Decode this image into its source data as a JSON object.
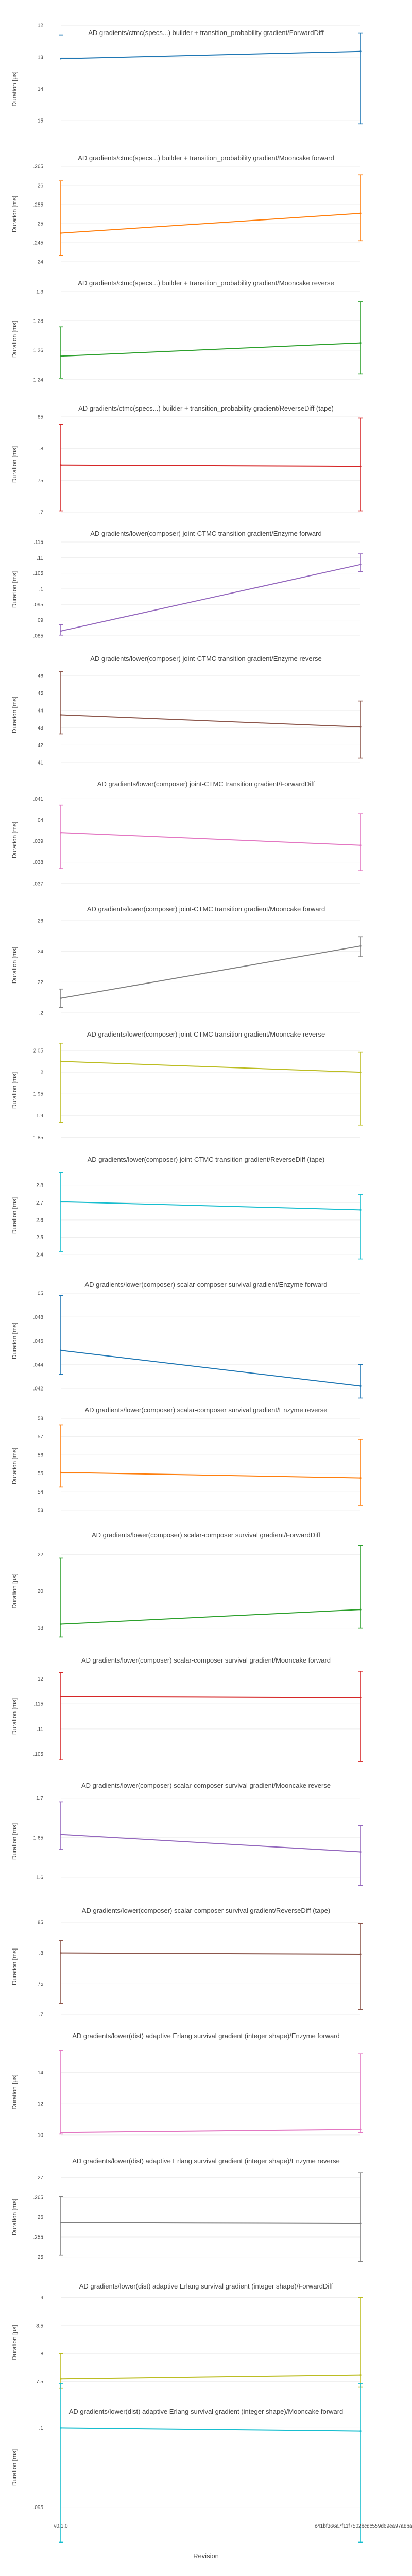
{
  "figure": {
    "xlabel": "Revision"
  },
  "chart_data": [
    {
      "type": "line",
      "title": "AD gradients/ctmc(specs...) builder + transition_probability gradient/ForwardDiff",
      "ylabel": "Duration [μs]",
      "ylim": [
        15.5,
        12.5
      ],
      "yticks": [
        12,
        13,
        14,
        15
      ],
      "x": [
        "v0.1.0",
        "c41bf366a7f11f7502bcdc559d69ea97a8bafb"
      ],
      "series": [
        {
          "name": "",
          "color": "#1f77b4",
          "values": [
            13.05,
            12.82
          ],
          "err_low": [
            12.3,
            15.1
          ],
          "err_high": [
            12.3,
            12.25
          ]
        }
      ]
    },
    {
      "type": "line",
      "title": "AD gradients/ctmc(specs...) builder + transition_probability gradient/Mooncake forward",
      "ylabel": "Duration [ms]",
      "ylim": [
        0.24,
        0.265
      ],
      "yticks": [
        0.24,
        0.245,
        0.25,
        0.255,
        0.26,
        0.265
      ],
      "x": [
        "v0.1.0",
        "c41bf366a7f11f7502bcdc559d69ea97a8bafb"
      ],
      "series": [
        {
          "name": "",
          "color": "#ff7f0e",
          "values": [
            0.2475,
            0.2527
          ],
          "err_low": [
            0.2417,
            0.2455
          ],
          "err_high": [
            0.2612,
            0.2628
          ]
        }
      ]
    },
    {
      "type": "line",
      "title": "AD gradients/ctmc(specs...) builder + transition_probability gradient/Mooncake reverse",
      "ylabel": "Duration [ms]",
      "ylim": [
        1.235,
        1.3
      ],
      "yticks": [
        1.24,
        1.26,
        1.28,
        1.3
      ],
      "x": [
        "v0.1.0",
        "c41bf366a7f11f7502bcdc559d69ea97a8bafb"
      ],
      "series": [
        {
          "name": "",
          "color": "#2ca02c",
          "values": [
            1.256,
            1.265
          ],
          "err_low": [
            1.241,
            1.244
          ],
          "err_high": [
            1.276,
            1.293
          ]
        }
      ]
    },
    {
      "type": "line",
      "title": "AD gradients/ctmc(specs...) builder + transition_probability gradient/ReverseDiff (tape)",
      "ylabel": "Duration [ms]",
      "ylim": [
        0.7,
        0.85
      ],
      "yticks": [
        0.7,
        0.75,
        0.8,
        0.85
      ],
      "x": [
        "v0.1.0",
        "c41bf366a7f11f7502bcdc559d69ea97a8bafb"
      ],
      "series": [
        {
          "name": "",
          "color": "#d62728",
          "values": [
            0.774,
            0.772
          ],
          "err_low": [
            0.702,
            0.702
          ],
          "err_high": [
            0.838,
            0.848
          ]
        }
      ]
    },
    {
      "type": "line",
      "title": "AD gradients/lower(composer) joint-CTMC transition gradient/Enzyme forward",
      "ylabel": "Duration [ms]",
      "ylim": [
        0.0845,
        0.115
      ],
      "yticks": [
        0.085,
        0.09,
        0.095,
        0.1,
        0.105,
        0.11,
        0.115
      ],
      "x": [
        "v0.1.0",
        "c41bf366a7f11f7502bcdc559d69ea97a8bafb"
      ],
      "series": [
        {
          "name": "",
          "color": "#9467bd",
          "values": [
            0.0865,
            0.1078
          ],
          "err_low": [
            0.0852,
            0.1055
          ],
          "err_high": [
            0.0885,
            0.1112
          ]
        }
      ]
    },
    {
      "type": "line",
      "title": "AD gradients/lower(composer) joint-CTMC transition gradient/Enzyme reverse",
      "ylabel": "Duration [ms]",
      "ylim": [
        0.41,
        0.465
      ],
      "yticks": [
        0.41,
        0.42,
        0.43,
        0.44,
        0.45,
        0.46
      ],
      "x": [
        "v0.1.0",
        "c41bf366a7f11f7502bcdc559d69ea97a8bafb"
      ],
      "series": [
        {
          "name": "",
          "color": "#8c564b",
          "values": [
            0.4375,
            0.4305
          ],
          "err_low": [
            0.4265,
            0.4125
          ],
          "err_high": [
            0.4625,
            0.4455
          ]
        }
      ]
    },
    {
      "type": "line",
      "title": "AD gradients/lower(composer) joint-CTMC transition gradient/ForwardDiff",
      "ylabel": "Duration [ms]",
      "ylim": [
        0.0368,
        0.0413
      ],
      "yticks": [
        0.037,
        0.038,
        0.039,
        0.04,
        0.041
      ],
      "x": [
        "v0.1.0",
        "c41bf366a7f11f7502bcdc559d69ea97a8bafb"
      ],
      "series": [
        {
          "name": "",
          "color": "#e377c2",
          "values": [
            0.0394,
            0.0388
          ],
          "err_low": [
            0.0377,
            0.0376
          ],
          "err_high": [
            0.0407,
            0.0403
          ]
        }
      ]
    },
    {
      "type": "line",
      "title": "AD gradients/lower(composer) joint-CTMC transition gradient/Mooncake forward",
      "ylabel": "Duration [ms]",
      "ylim": [
        0.2,
        0.262
      ],
      "yticks": [
        0.2,
        0.22,
        0.24,
        0.26
      ],
      "x": [
        "v0.1.0",
        "c41bf366a7f11f7502bcdc559d69ea97a8bafb"
      ],
      "series": [
        {
          "name": "",
          "color": "#7f7f7f",
          "values": [
            0.2095,
            0.2435
          ],
          "err_low": [
            0.2035,
            0.2365
          ],
          "err_high": [
            0.2155,
            0.2495
          ]
        }
      ]
    },
    {
      "type": "line",
      "title": "AD gradients/lower(composer) joint-CTMC transition gradient/Mooncake reverse",
      "ylabel": "Duration [ms]",
      "ylim": [
        1.848,
        2.068
      ],
      "yticks": [
        1.85,
        1.9,
        1.95,
        2,
        2.05
      ],
      "x": [
        "v0.1.0",
        "c41bf366a7f11f7502bcdc559d69ea97a8bafb"
      ],
      "series": [
        {
          "name": "",
          "color": "#bcbd22",
          "values": [
            2.025,
            2.0
          ],
          "err_low": [
            1.884,
            1.878
          ],
          "err_high": [
            2.067,
            2.047
          ]
        }
      ]
    },
    {
      "type": "line",
      "title": "AD gradients/lower(composer) joint-CTMC transition gradient/ReverseDiff (tape)",
      "ylabel": "Duration [ms]",
      "ylim": [
        2.35,
        2.9
      ],
      "yticks": [
        2.4,
        2.5,
        2.6,
        2.7,
        2.8
      ],
      "x": [
        "v0.1.0",
        "c41bf366a7f11f7502bcdc559d69ea97a8bafb"
      ],
      "series": [
        {
          "name": "",
          "color": "#17becf",
          "values": [
            2.705,
            2.658
          ],
          "err_low": [
            2.418,
            2.375
          ],
          "err_high": [
            2.875,
            2.748
          ]
        }
      ]
    },
    {
      "type": "line",
      "title": "AD gradients/lower(composer) scalar-composer survival gradient/Enzyme forward",
      "ylabel": "Duration [ms]",
      "ylim": [
        0.042,
        0.05
      ],
      "yticks": [
        0.042,
        0.044,
        0.046,
        0.048,
        0.05
      ],
      "x": [
        "v0.1.0",
        "c41bf366a7f11f7502bcdc559d69ea97a8bafb"
      ],
      "series": [
        {
          "name": "",
          "color": "#1f77b4",
          "values": [
            0.0452,
            0.0422
          ],
          "err_low": [
            0.0432,
            0.0412
          ],
          "err_high": [
            0.0498,
            0.044
          ]
        }
      ]
    },
    {
      "type": "line",
      "title": "AD gradients/lower(composer) scalar-composer survival gradient/Enzyme reverse",
      "ylabel": "Duration [ms]",
      "ylim": [
        0.528,
        0.58
      ],
      "yticks": [
        0.53,
        0.54,
        0.55,
        0.56,
        0.57,
        0.58
      ],
      "x": [
        "v0.1.0",
        "c41bf366a7f11f7502bcdc559d69ea97a8bafb"
      ],
      "series": [
        {
          "name": "",
          "color": "#ff7f0e",
          "values": [
            0.5505,
            0.5475
          ],
          "err_low": [
            0.5425,
            0.5325
          ],
          "err_high": [
            0.5765,
            0.5685
          ]
        }
      ]
    },
    {
      "type": "line",
      "title": "AD gradients/lower(composer) scalar-composer survival gradient/ForwardDiff",
      "ylabel": "Duration [μs]",
      "ylim": [
        17.4,
        22.6
      ],
      "yticks": [
        18,
        20,
        22
      ],
      "x": [
        "v0.1.0",
        "c41bf366a7f11f7502bcdc559d69ea97a8bafb"
      ],
      "series": [
        {
          "name": "",
          "color": "#2ca02c",
          "values": [
            18.2,
            19.0
          ],
          "err_low": [
            17.5,
            18.0
          ],
          "err_high": [
            21.8,
            22.5
          ]
        }
      ]
    },
    {
      "type": "line",
      "title": "AD gradients/lower(composer) scalar-composer survival gradient/Mooncake forward",
      "ylabel": "Duration [ms]",
      "ylim": [
        0.103,
        0.122
      ],
      "yticks": [
        0.105,
        0.11,
        0.115,
        0.12
      ],
      "x": [
        "v0.1.0",
        "c41bf366a7f11f7502bcdc559d69ea97a8bafb"
      ],
      "series": [
        {
          "name": "",
          "color": "#d62728",
          "values": [
            0.1165,
            0.1163
          ],
          "err_low": [
            0.1038,
            0.1035
          ],
          "err_high": [
            0.1212,
            0.1215
          ]
        }
      ]
    },
    {
      "type": "line",
      "title": "AD gradients/lower(composer) scalar-composer survival gradient/Mooncake reverse",
      "ylabel": "Duration [ms]",
      "ylim": [
        1.585,
        1.705
      ],
      "yticks": [
        1.6,
        1.65,
        1.7
      ],
      "x": [
        "v0.1.0",
        "c41bf366a7f11f7502bcdc559d69ea97a8bafb"
      ],
      "series": [
        {
          "name": "",
          "color": "#9467bd",
          "values": [
            1.654,
            1.632
          ],
          "err_low": [
            1.635,
            1.59
          ],
          "err_high": [
            1.695,
            1.665
          ]
        }
      ]
    },
    {
      "type": "line",
      "title": "AD gradients/lower(composer) scalar-composer survival gradient/ReverseDiff (tape)",
      "ylabel": "Duration [ms]",
      "ylim": [
        0.7,
        0.855
      ],
      "yticks": [
        0.7,
        0.75,
        0.8,
        0.85
      ],
      "x": [
        "v0.1.0",
        "c41bf366a7f11f7502bcdc559d69ea97a8bafb"
      ],
      "series": [
        {
          "name": "",
          "color": "#8c564b",
          "values": [
            0.8,
            0.798
          ],
          "err_low": [
            0.718,
            0.708
          ],
          "err_high": [
            0.82,
            0.848
          ]
        }
      ]
    },
    {
      "type": "line",
      "title": "AD gradients/lower(dist) adaptive Erlang survival gradient (integer shape)/Enzyme forward",
      "ylabel": "Duration [μs]",
      "ylim": [
        9.7,
        15.8
      ],
      "yticks": [
        10,
        12,
        14
      ],
      "x": [
        "v0.1.0",
        "c41bf366a7f11f7502bcdc559d69ea97a8bafb"
      ],
      "series": [
        {
          "name": "",
          "color": "#e377c2",
          "values": [
            10.15,
            10.35
          ],
          "err_low": [
            10.05,
            10.15
          ],
          "err_high": [
            15.4,
            15.2
          ]
        }
      ]
    },
    {
      "type": "line",
      "title": "AD gradients/lower(dist) adaptive Erlang survival gradient (integer shape)/Enzyme reverse",
      "ylabel": "Duration [ms]",
      "ylim": [
        0.248,
        0.272
      ],
      "yticks": [
        0.25,
        0.255,
        0.26,
        0.265,
        0.27
      ],
      "x": [
        "v0.1.0",
        "c41bf366a7f11f7502bcdc559d69ea97a8bafb"
      ],
      "series": [
        {
          "name": "",
          "color": "#7f7f7f",
          "values": [
            0.2587,
            0.2585
          ],
          "err_low": [
            0.2505,
            0.2488
          ],
          "err_high": [
            0.2652,
            0.2712
          ]
        }
      ]
    },
    {
      "type": "line",
      "title": "AD gradients/lower(dist) adaptive Erlang survival gradient (integer shape)/ForwardDiff",
      "ylabel": "Duration [μs]",
      "ylim": [
        7.35,
        9.05
      ],
      "yticks": [
        7.5,
        8,
        8.5,
        9
      ],
      "x": [
        "v0.1.0",
        "c41bf366a7f11f7502bcdc559d69ea97a8bafb"
      ],
      "series": [
        {
          "name": "",
          "color": "#bcbd22",
          "values": [
            7.55,
            7.62
          ],
          "err_low": [
            7.38,
            7.4
          ],
          "err_high": [
            8.0,
            9.0
          ]
        }
      ]
    },
    {
      "type": "line",
      "title": "AD gradients/lower(dist) adaptive Erlang survival gradient (integer shape)/Mooncake forward",
      "ylabel": "Duration [ms]",
      "ylim": [
        0.0945,
        0.1005
      ],
      "yticks": [
        0.095,
        0.1
      ],
      "x": [
        "v0.1.0",
        "c41bf366a7f11f7502bcdc559d69ea97a8bafb"
      ],
      "series": [
        {
          "name": "",
          "color": "#17becf",
          "values": [
            0.1,
            0.0998
          ],
          "err_low": [
            0.0928,
            0.0928
          ],
          "err_high": [
            0.1028,
            0.1028
          ]
        }
      ]
    }
  ]
}
